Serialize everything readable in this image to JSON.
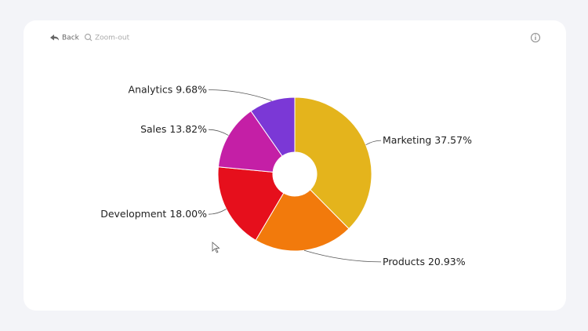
{
  "toolbar": {
    "back": "Back",
    "zoom_out": "Zoom-out"
  },
  "chart_data": {
    "type": "donut",
    "categories": [
      "Marketing",
      "Products",
      "Development",
      "Sales",
      "Analytics"
    ],
    "values": [
      37.57,
      20.93,
      18.0,
      13.82,
      9.68
    ],
    "value_labels": [
      "37.57%",
      "20.93%",
      "18.00%",
      "13.82%",
      "9.68%"
    ],
    "colors": [
      "#e4b41c",
      "#f27a0c",
      "#e60f1c",
      "#c41fa6",
      "#7b38d6"
    ]
  }
}
